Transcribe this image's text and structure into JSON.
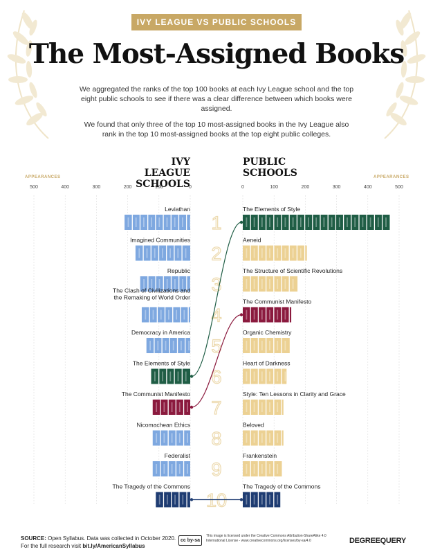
{
  "header": {
    "banner": "IVY LEAGUE VS PUBLIC SCHOOLS",
    "title": "The Most-Assigned Books",
    "intro1": "We aggregated the ranks of the top 100 books at each Ivy League school and the top eight public schools to see if there was a clear difference between which books were assigned.",
    "intro2": "We found that only three of the top 10 most-assigned books in the Ivy League also rank in the top 10 most-assigned books at the top eight public colleges."
  },
  "colors": {
    "ivy": "#7ea8e0",
    "public": "#ecd193",
    "elements_of_style": "#1f5d45",
    "communist_manifesto": "#8b1a3e",
    "tragedy_of_commons": "#1e3c72",
    "rank_numbers": "#ecd9ad",
    "accent": "#c8a865"
  },
  "chart_data": {
    "type": "bar",
    "xlabel": "APPEARANCES",
    "ivy": {
      "title_line1": "IVY LEAGUE",
      "title_line2": "SCHOOLS",
      "axis_ticks": [
        "500",
        "400",
        "300",
        "200",
        "100",
        "0"
      ],
      "xlim": [
        0,
        500
      ],
      "books": [
        {
          "rank": "1",
          "title": "Leviathan",
          "value": 210
        },
        {
          "rank": "2",
          "title": "Imagined Communities",
          "value": 175
        },
        {
          "rank": "3",
          "title": "Republic",
          "value": 160
        },
        {
          "rank": "4",
          "title": "The Clash of Civilizations and the Remaking of World Order",
          "value": 155
        },
        {
          "rank": "5",
          "title": "Democracy in America",
          "value": 140
        },
        {
          "rank": "6",
          "title": "The Elements of Style",
          "value": 125
        },
        {
          "rank": "7",
          "title": "The Communist Manifesto",
          "value": 120
        },
        {
          "rank": "8",
          "title": "Nicomachean Ethics",
          "value": 120
        },
        {
          "rank": "9",
          "title": "Federalist",
          "value": 120
        },
        {
          "rank": "10",
          "title": "The Tragedy of the Commons",
          "value": 110
        }
      ]
    },
    "public": {
      "title_line1": "PUBLIC",
      "title_line2": "SCHOOLS",
      "axis_ticks": [
        "0",
        "100",
        "200",
        "300",
        "400",
        "500"
      ],
      "xlim": [
        0,
        500
      ],
      "books": [
        {
          "rank": "1",
          "title": "The Elements of Style",
          "value": 470
        },
        {
          "rank": "2",
          "title": "Aeneid",
          "value": 205
        },
        {
          "rank": "3",
          "title": "The Structure of Scientific Revolutions",
          "value": 175
        },
        {
          "rank": "4",
          "title": "The Communist Manifesto",
          "value": 155
        },
        {
          "rank": "5",
          "title": "Organic Chemistry",
          "value": 150
        },
        {
          "rank": "6",
          "title": "Heart of Darkness",
          "value": 140
        },
        {
          "rank": "7",
          "title": "Style: Ten Lessons in Clarity and Grace",
          "value": 130
        },
        {
          "rank": "8",
          "title": "Beloved",
          "value": 130
        },
        {
          "rank": "9",
          "title": "Frankenstein",
          "value": 125
        },
        {
          "rank": "10",
          "title": "The Tragedy of the Commons",
          "value": 120
        }
      ]
    }
  },
  "footer": {
    "source_label": "SOURCE:",
    "source_text": "Open Syllabus. Data was collected in October 2020.",
    "research_text": "For the full research visit",
    "research_link": "bit.ly/AmericanSyllabus",
    "license_badge": "cc by-sa",
    "license_text": "This image is licensed under the Creative Commons Attribution-ShareAlike 4.0 International License - www.creativecommons.org/licenses/by-sa/4.0",
    "brand": "DEGREEQUERY"
  }
}
